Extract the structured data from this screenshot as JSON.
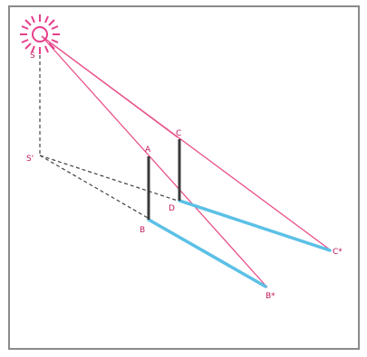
{
  "labels": {
    "s": "S",
    "s_prime": "S'",
    "a": "A",
    "b": "B",
    "c": "C",
    "d": "D",
    "b_star": "B*",
    "c_star": "C*"
  },
  "colors": {
    "sun": "#e83e8c",
    "ray": "#e8508a",
    "post": "#3a3a3a",
    "shadow": "#5bc0e6",
    "dashed": "#444444",
    "label": "#c2185b"
  },
  "icons": {
    "sun": "sun-icon"
  }
}
